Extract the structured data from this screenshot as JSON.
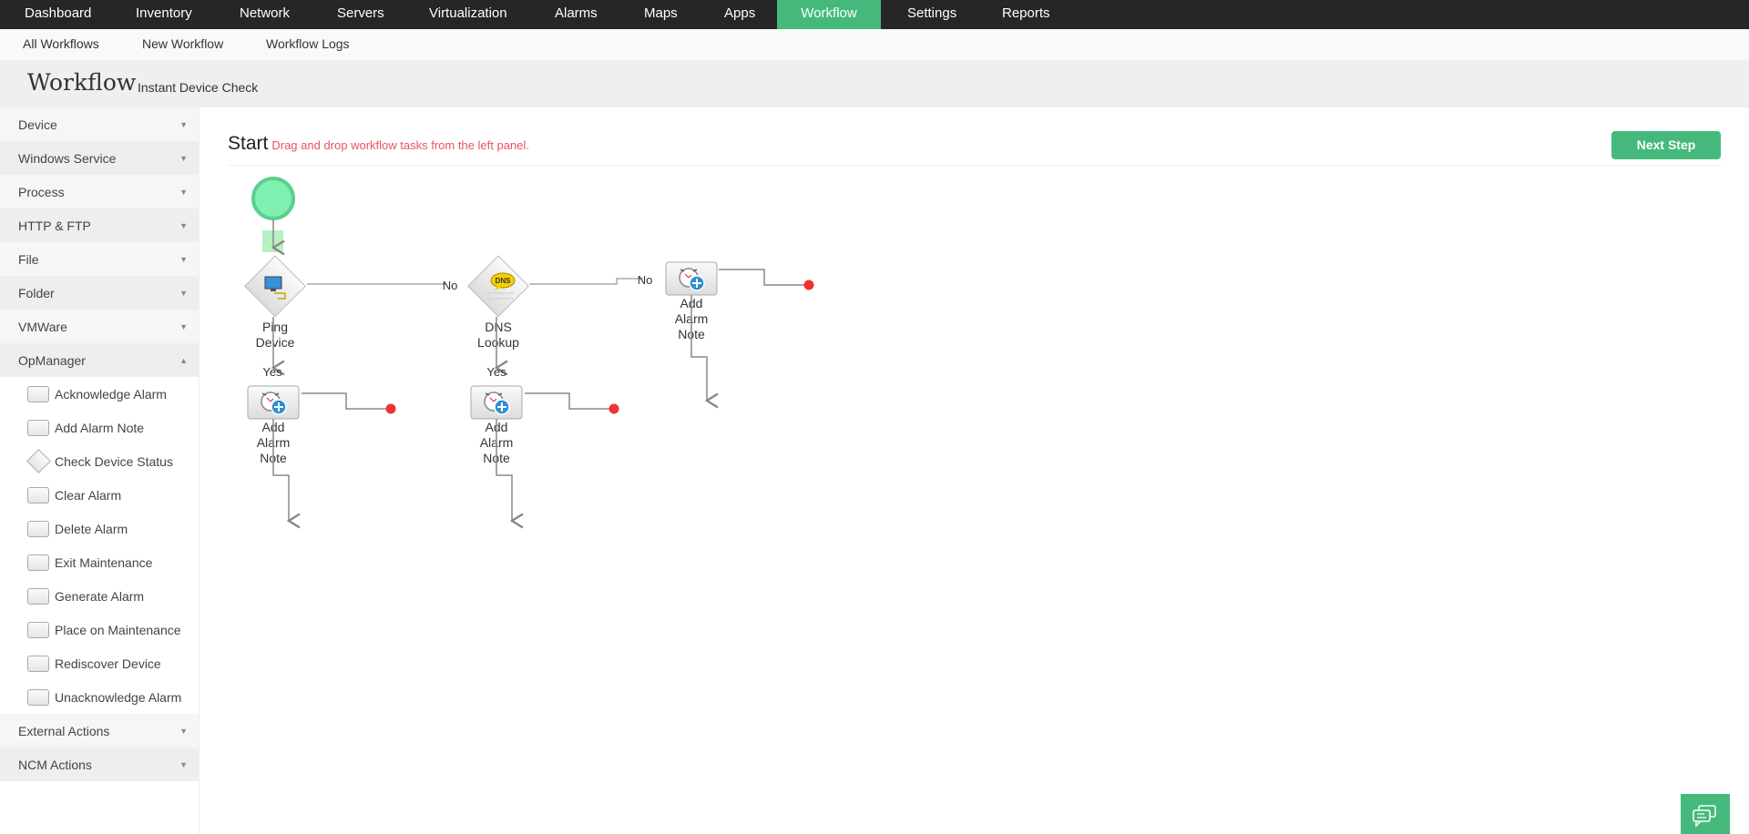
{
  "topnav": {
    "items": [
      "Dashboard",
      "Inventory",
      "Network",
      "Servers",
      "Virtualization",
      "Alarms",
      "Maps",
      "Apps",
      "Workflow",
      "Settings",
      "Reports"
    ],
    "active": "Workflow"
  },
  "subnav": {
    "items": [
      "All Workflows",
      "New Workflow",
      "Workflow Logs"
    ]
  },
  "header": {
    "title": "Workflow",
    "subtitle": "Instant Device Check"
  },
  "sidebar": {
    "groups_top": [
      "Device",
      "Windows Service",
      "Process",
      "HTTP & FTP",
      "File",
      "Folder",
      "VMWare"
    ],
    "expanded": "OpManager",
    "children": [
      "Acknowledge Alarm",
      "Add Alarm Note",
      "Check Device Status",
      "Clear Alarm",
      "Delete Alarm",
      "Exit Maintenance",
      "Generate Alarm",
      "Place on Maintenance",
      "Rediscover Device",
      "Unacknowledge Alarm"
    ],
    "groups_bottom": [
      "External Actions",
      "NCM Actions"
    ]
  },
  "canvas": {
    "heading": "Start",
    "hint": "Drag and drop workflow tasks from the left panel.",
    "next_label": "Next Step",
    "nodes": {
      "ping": [
        "Ping",
        "Device"
      ],
      "dns": [
        "DNS",
        "Lookup"
      ],
      "note": [
        "Add",
        "Alarm",
        "Note"
      ],
      "dns_icon": "DNS"
    },
    "yes": "Yes",
    "no": "No"
  },
  "colors": {
    "accent": "#45b97c",
    "hint": "#e9545a",
    "end": "#f03232",
    "start": "#7ff0b0"
  }
}
